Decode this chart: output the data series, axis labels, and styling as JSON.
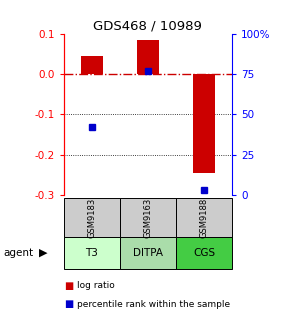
{
  "title": "GDS468 / 10989",
  "samples": [
    "GSM9183",
    "GSM9163",
    "GSM9188"
  ],
  "agents": [
    "T3",
    "DITPA",
    "CGS"
  ],
  "log_ratios": [
    0.045,
    0.085,
    -0.245
  ],
  "percentile_ranks": [
    42,
    77,
    3
  ],
  "bar_color": "#cc0000",
  "dot_color": "#0000cc",
  "ylim_left": [
    -0.3,
    0.1
  ],
  "ylim_right": [
    0,
    100
  ],
  "yticks_left": [
    -0.3,
    -0.2,
    -0.1,
    0.0,
    0.1
  ],
  "yticks_right": [
    0,
    25,
    50,
    75,
    100
  ],
  "ytick_labels_right": [
    "0",
    "25",
    "50",
    "75",
    "100%"
  ],
  "zero_line_color": "#cc0000",
  "agent_colors": [
    "#ccffcc",
    "#aaddaa",
    "#44cc44"
  ],
  "gsm_bg": "#cccccc",
  "bar_width": 0.4
}
